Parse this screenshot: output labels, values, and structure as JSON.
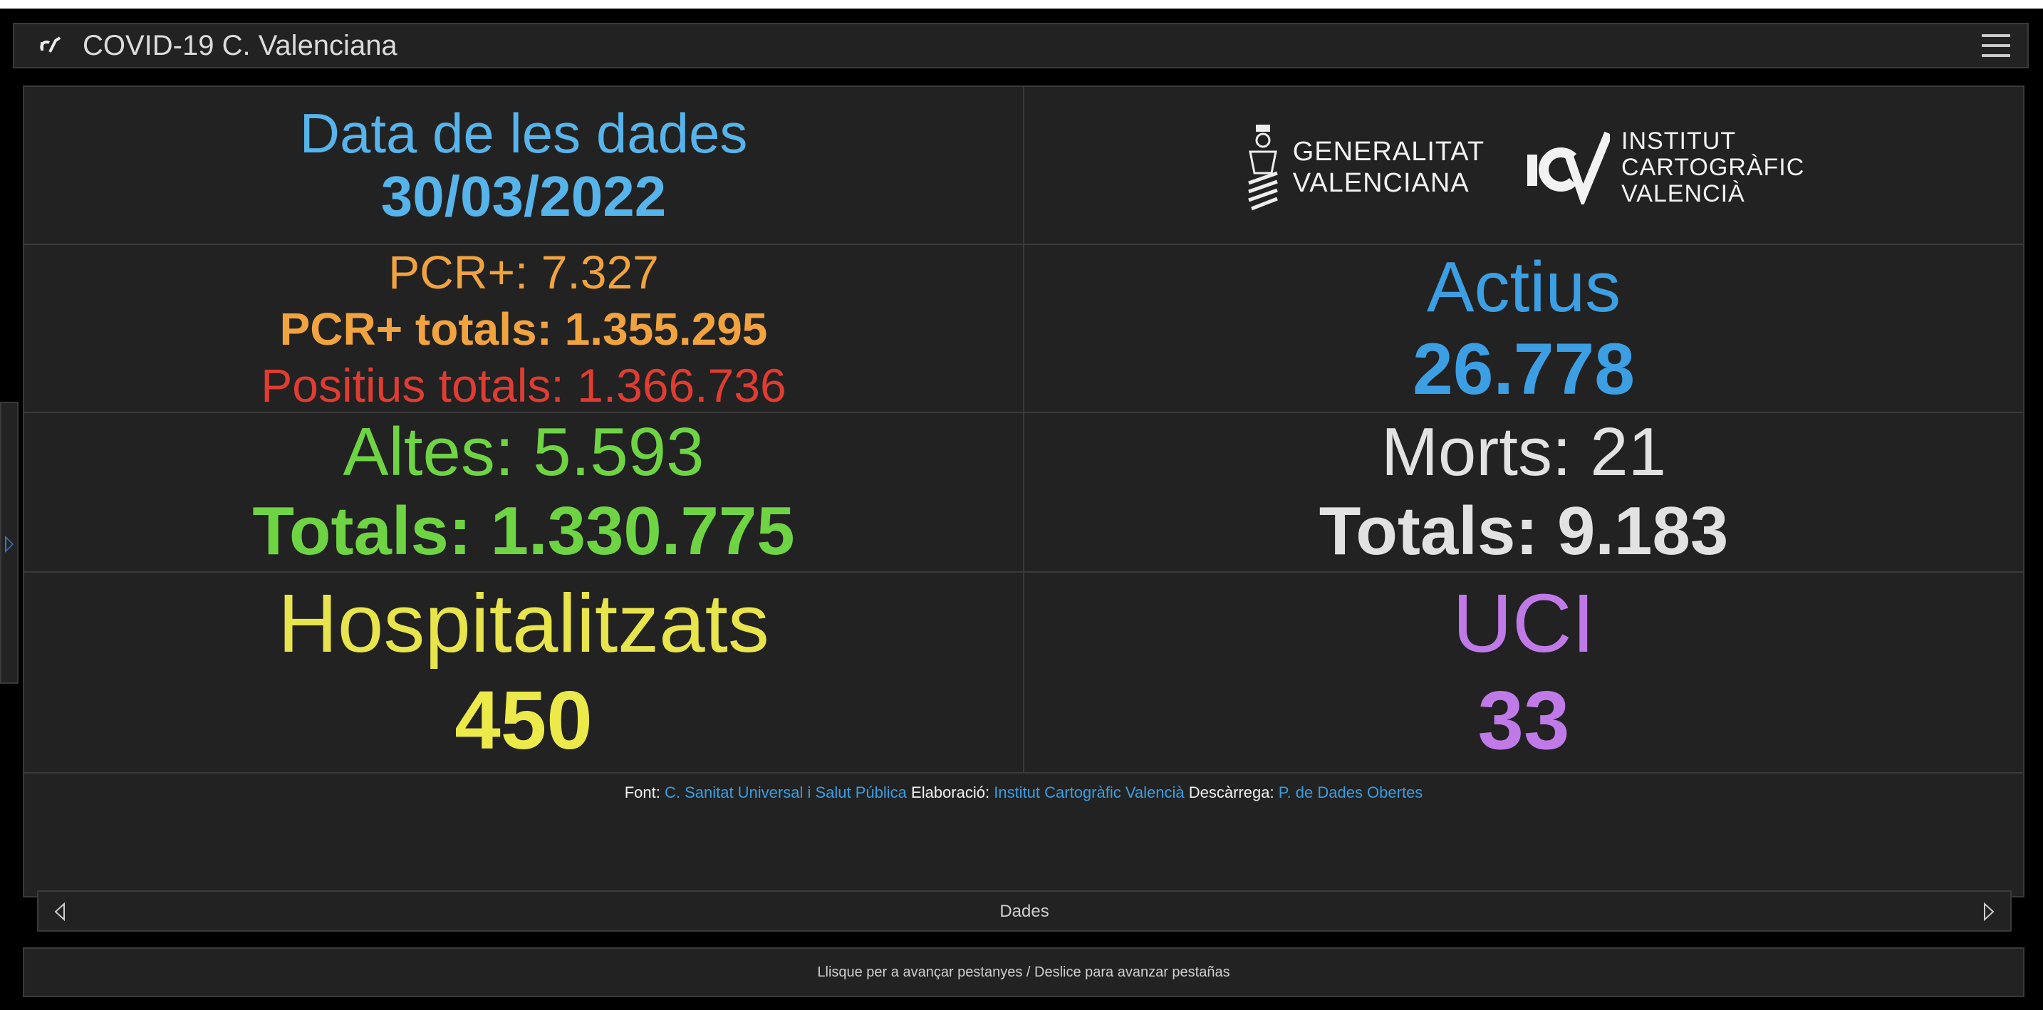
{
  "app": {
    "title": "COVID-19 C. Valenciana",
    "logo_icon": "icv-logo-icon",
    "menu_icon": "hamburger-menu-icon"
  },
  "date": {
    "label": "Data de les dades",
    "value": "30/03/2022"
  },
  "logos": {
    "gva_line1": "GENERALITAT",
    "gva_line2": "VALENCIANA",
    "icv_line1": "INSTITUT",
    "icv_line2": "CARTOGRÀFIC",
    "icv_line3": "VALENCIÀ"
  },
  "pcr": {
    "daily": "PCR+: 7.327",
    "total": "PCR+ totals: 1.355.295",
    "positius_total": "Positius totals: 1.366.736"
  },
  "actius": {
    "label": "Actius",
    "value": "26.778"
  },
  "altes": {
    "daily": "Altes: 5.593",
    "total": "Totals: 1.330.775"
  },
  "morts": {
    "daily": "Morts: 21",
    "total": "Totals: 9.183"
  },
  "hospitalitzats": {
    "label": "Hospitalitzats",
    "value": "450"
  },
  "uci": {
    "label": "UCI",
    "value": "33"
  },
  "credits": {
    "font_label": "Font:",
    "font_link": "C. Sanitat Universal i Salut Pública",
    "elab_label": "Elaboració:",
    "elab_link": "Institut Cartogràfic Valencià",
    "desc_label": "Descàrrega:",
    "desc_link": "P. de Dades Obertes"
  },
  "tabs": {
    "current": "Dades"
  },
  "hint": "Llisque per a avançar pestanyes / Deslice para avanzar pestañas",
  "colors": {
    "background": "#000000",
    "panel": "#222222",
    "date_blue": "#56b4ea",
    "pcr_orange": "#f0a33f",
    "positius_red": "#e03c32",
    "actius_blue": "#3c9fe3",
    "altes_green": "#6fd444",
    "morts_white": "#e2e2e2",
    "hosp_yellow": "#ece94a",
    "uci_purple": "#c07ae8",
    "link_blue": "#3b9de0"
  }
}
